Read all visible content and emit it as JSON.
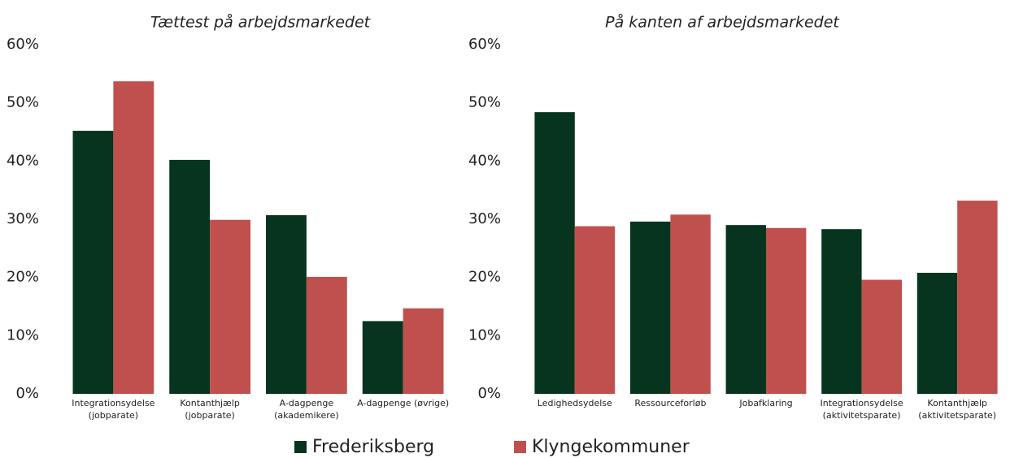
{
  "chart_data": [
    {
      "type": "bar",
      "title": "Tættest på arbejdsmarkedet",
      "categories": [
        [
          "Integrationsydelse",
          "(jobparate)"
        ],
        [
          "Kontanthjælp",
          "(jobparate)"
        ],
        [
          "A-dagpenge",
          "(akademikere)"
        ],
        [
          "A-dagpenge (øvrige)"
        ]
      ],
      "series": [
        {
          "name": "Frederiksberg",
          "color": "#06341f",
          "values": [
            45.2,
            40.2,
            30.7,
            12.5
          ]
        },
        {
          "name": "Klyngekommuner",
          "color": "#c0504d",
          "values": [
            53.7,
            29.9,
            20.1,
            14.7
          ]
        }
      ],
      "ylim": [
        0,
        60
      ],
      "yticks": [
        {
          "value": 0,
          "label": "0%"
        },
        {
          "value": 10,
          "label": "10%"
        },
        {
          "value": 20,
          "label": "20%"
        },
        {
          "value": 30,
          "label": "30%"
        },
        {
          "value": 40,
          "label": "40%"
        },
        {
          "value": 50,
          "label": "50%"
        },
        {
          "value": 60,
          "label": "60%"
        }
      ]
    },
    {
      "type": "bar",
      "title": "På kanten af arbejdsmarkedet",
      "categories": [
        [
          "Ledighedsydelse"
        ],
        [
          "Ressourceforløb"
        ],
        [
          "Jobafklaring"
        ],
        [
          "Integrationsydelse",
          "(aktivitetsparate)"
        ],
        [
          "Kontanthjælp",
          "(aktivitetsparate)"
        ]
      ],
      "series": [
        {
          "values": [
            48.4,
            29.6,
            29.0,
            28.3,
            20.8
          ]
        },
        {
          "values": [
            28.8,
            30.8,
            28.5,
            19.6,
            33.2
          ]
        }
      ],
      "ylim": [
        0,
        60
      ],
      "yticks": [
        {
          "value": 0,
          "label": "0%"
        },
        {
          "value": 10,
          "label": "10%"
        },
        {
          "value": 20,
          "label": "20%"
        },
        {
          "value": 30,
          "label": "30%"
        },
        {
          "value": 40,
          "label": "40%"
        },
        {
          "value": 50,
          "label": "50%"
        },
        {
          "value": 60,
          "label": "60%"
        }
      ]
    }
  ]
}
